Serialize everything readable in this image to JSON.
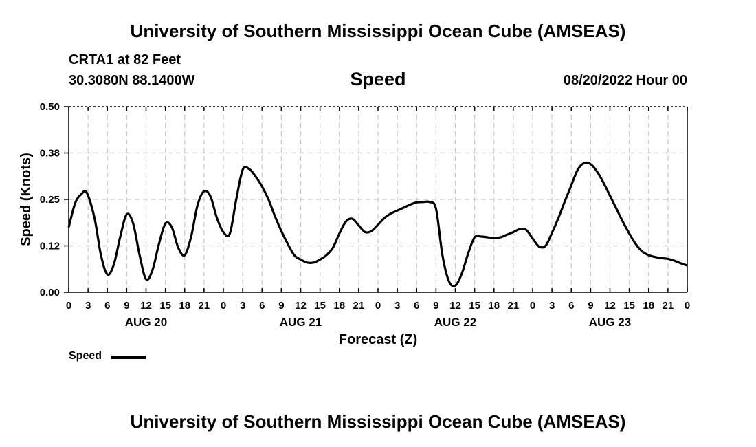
{
  "header": {
    "title": "University of Southern Mississippi Ocean Cube (AMSEAS)",
    "station": "CRTA1 at 82 Feet",
    "coords": "30.3080N  88.1400W",
    "datetime": "08/20/2022 Hour 00"
  },
  "footer": {
    "title": "University of Southern Mississippi Ocean Cube (AMSEAS)"
  },
  "legend": {
    "label": "Speed",
    "color": "#000000"
  },
  "chart_data": {
    "type": "line",
    "title": "Speed",
    "xlabel": "Forecast (Z)",
    "ylabel": "Speed (Knots)",
    "xlim": [
      0,
      96
    ],
    "ylim": [
      0,
      0.5
    ],
    "grid": true,
    "legend_position": "bottom-left",
    "y_ticks": [
      "0.00",
      "0.12",
      "0.25",
      "0.38",
      "0.50"
    ],
    "x_tick_labels": [
      "0",
      "3",
      "6",
      "9",
      "12",
      "15",
      "18",
      "21",
      "0",
      "3",
      "6",
      "9",
      "12",
      "15",
      "18",
      "21",
      "0",
      "3",
      "6",
      "9",
      "12",
      "15",
      "18",
      "21",
      "0",
      "3",
      "6",
      "9",
      "12",
      "15",
      "18",
      "21",
      "0"
    ],
    "day_labels": [
      {
        "label": "AUG 20",
        "center_hour": 12
      },
      {
        "label": "AUG 21",
        "center_hour": 36
      },
      {
        "label": "AUG 22",
        "center_hour": 60
      },
      {
        "label": "AUG 23",
        "center_hour": 84
      }
    ],
    "series": [
      {
        "name": "Speed",
        "x": [
          0,
          1,
          2,
          2.8,
          4,
          5,
          6,
          7,
          8,
          9,
          10,
          11,
          12,
          13,
          14,
          15,
          16,
          17,
          18,
          19,
          20,
          21,
          22,
          23,
          24,
          25,
          26,
          27,
          28,
          29,
          30,
          31,
          32,
          33,
          34,
          35,
          36,
          37,
          38,
          39,
          40,
          41,
          42,
          43,
          44,
          45,
          46,
          47,
          48,
          49,
          50,
          51,
          52,
          53,
          54,
          55,
          56,
          57,
          58,
          59,
          60,
          61,
          62,
          63,
          64,
          65,
          66,
          67,
          68,
          69,
          70,
          71,
          72,
          73,
          74,
          75,
          76,
          77,
          78,
          79,
          80,
          81,
          82,
          83,
          84,
          85,
          86,
          87,
          88,
          89,
          90,
          91,
          92,
          93,
          94,
          95,
          96
        ],
        "values": [
          0.175,
          0.24,
          0.265,
          0.268,
          0.2,
          0.1,
          0.048,
          0.075,
          0.15,
          0.21,
          0.185,
          0.1,
          0.035,
          0.06,
          0.13,
          0.185,
          0.175,
          0.12,
          0.1,
          0.15,
          0.235,
          0.272,
          0.258,
          0.2,
          0.162,
          0.158,
          0.25,
          0.33,
          0.332,
          0.312,
          0.285,
          0.25,
          0.205,
          0.165,
          0.13,
          0.1,
          0.088,
          0.08,
          0.08,
          0.088,
          0.1,
          0.12,
          0.158,
          0.19,
          0.198,
          0.18,
          0.162,
          0.165,
          0.182,
          0.2,
          0.212,
          0.22,
          0.228,
          0.236,
          0.242,
          0.243,
          0.243,
          0.225,
          0.1,
          0.03,
          0.018,
          0.05,
          0.105,
          0.148,
          0.15,
          0.148,
          0.146,
          0.148,
          0.155,
          0.162,
          0.17,
          0.168,
          0.145,
          0.123,
          0.125,
          0.16,
          0.2,
          0.245,
          0.288,
          0.33,
          0.348,
          0.345,
          0.325,
          0.295,
          0.26,
          0.225,
          0.19,
          0.158,
          0.13,
          0.11,
          0.1,
          0.095,
          0.092,
          0.09,
          0.085,
          0.078,
          0.072
        ]
      }
    ]
  }
}
